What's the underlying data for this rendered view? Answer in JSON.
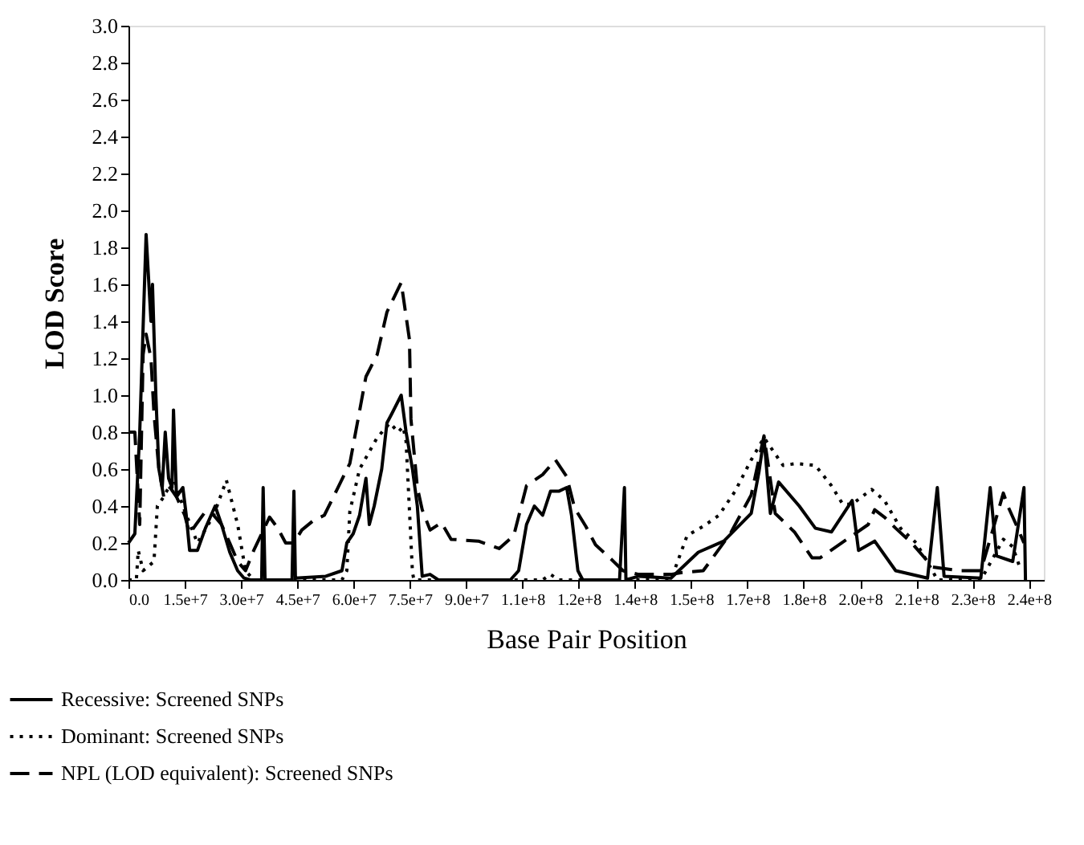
{
  "chart_data": {
    "type": "line",
    "xlabel": "Base Pair Position",
    "ylabel": "LOD Score",
    "xlim": [
      0,
      244000000.0
    ],
    "ylim": [
      0,
      3.0
    ],
    "xticks": [
      {
        "value": 0,
        "label": "0.0"
      },
      {
        "value": 15000000.0,
        "label": "1.5e+7"
      },
      {
        "value": 30000000.0,
        "label": "3.0e+7"
      },
      {
        "value": 45000000.0,
        "label": "4.5e+7"
      },
      {
        "value": 60000000.0,
        "label": "6.0e+7"
      },
      {
        "value": 75000000.0,
        "label": "7.5e+7"
      },
      {
        "value": 90000000.0,
        "label": "9.0e+7"
      },
      {
        "value": 105000000.0,
        "label": "1.1e+8"
      },
      {
        "value": 120000000.0,
        "label": "1.2e+8"
      },
      {
        "value": 135000000.0,
        "label": "1.4e+8"
      },
      {
        "value": 150000000.0,
        "label": "1.5e+8"
      },
      {
        "value": 165000000.0,
        "label": "1.7e+8"
      },
      {
        "value": 180000000.0,
        "label": "1.8e+8"
      },
      {
        "value": 195000000.0,
        "label": "2.0e+8"
      },
      {
        "value": 210000000.0,
        "label": "2.1e+8"
      },
      {
        "value": 225000000.0,
        "label": "2.3e+8"
      },
      {
        "value": 240000000.0,
        "label": "2.4e+8"
      }
    ],
    "yticks": [
      {
        "value": 0,
        "label": "0.0"
      },
      {
        "value": 0.2,
        "label": "0.2"
      },
      {
        "value": 0.4,
        "label": "0.4"
      },
      {
        "value": 0.6,
        "label": "0.6"
      },
      {
        "value": 0.8,
        "label": "0.8"
      },
      {
        "value": 1.0,
        "label": "1.0"
      },
      {
        "value": 1.2,
        "label": "1.2"
      },
      {
        "value": 1.4,
        "label": "1.4"
      },
      {
        "value": 1.6,
        "label": "1.6"
      },
      {
        "value": 1.8,
        "label": "1.8"
      },
      {
        "value": 2.0,
        "label": "2.0"
      },
      {
        "value": 2.2,
        "label": "2.2"
      },
      {
        "value": 2.4,
        "label": "2.4"
      },
      {
        "value": 2.6,
        "label": "2.6"
      },
      {
        "value": 2.8,
        "label": "2.8"
      },
      {
        "value": 3.0,
        "label": "3.0"
      }
    ],
    "grid": false,
    "legend": "bottom left",
    "series": [
      {
        "name": "Recessive: Screened SNPs",
        "color": "#000000",
        "line_style": "solid",
        "x": [
          0,
          1700000.0,
          3000000.0,
          4700000.0,
          6000000.0,
          6400000.0,
          7300000.0,
          8100000.0,
          9000000.0,
          9800000.0,
          10700000.0,
          11600000.0,
          12000000.0,
          12800000.0,
          14500000.0,
          15400000.0,
          16300000.0,
          18400000.0,
          20500000.0,
          23100000.0,
          24800000.0,
          27000000.0,
          29100000.0,
          30800000.0,
          32500000.0,
          35500000.0,
          35900000.0,
          36400000.0,
          43600000.0,
          44100000.0,
          44500000.0,
          52600000.0,
          56900000.0,
          58200000.0,
          59900000.0,
          61600000.0,
          63300000.0,
          64200000.0,
          65500000.0,
          67500000.0,
          68900000.0,
          70200000.0,
          72700000.0,
          74000000.0,
          75700000.0,
          77000000.0,
          78300000.0,
          80400000.0,
          82600000.0,
          101800000.0,
          104000000.0,
          106100000.0,
          108200000.0,
          110400000.0,
          112500000.0,
          114700000.0,
          116800000.0,
          118100000.0,
          119800000.0,
          121100000.0,
          130900000.0,
          132200000.0,
          132600000.0,
          136000000.0,
          144600000.0,
          151900000.0,
          158700000.0,
          166000000.0,
          168100000.0,
          169400000.0,
          171100000.0,
          173300000.0,
          178800000.0,
          183100000.0,
          187400000.0,
          192900000.0,
          194600000.0,
          198900000.0,
          204500000.0,
          213000000.0,
          215600000.0,
          217400000.0,
          227200000.0,
          229700000.0,
          231400000.0,
          235700000.0,
          238700000.0,
          239100000.0
        ],
        "values": [
          0.2,
          0.25,
          0.8,
          1.87,
          1.4,
          1.6,
          1.0,
          0.6,
          0.5,
          0.8,
          0.55,
          0.5,
          0.92,
          0.45,
          0.5,
          0.35,
          0.16,
          0.16,
          0.28,
          0.4,
          0.3,
          0.15,
          0.05,
          0.01,
          0,
          0,
          0.5,
          0,
          0,
          0.48,
          0.01,
          0.02,
          0.05,
          0.2,
          0.25,
          0.35,
          0.55,
          0.3,
          0.4,
          0.6,
          0.85,
          0.9,
          1.0,
          0.8,
          0.6,
          0.4,
          0.02,
          0.03,
          0,
          0,
          0.05,
          0.3,
          0.4,
          0.35,
          0.48,
          0.48,
          0.5,
          0.35,
          0.05,
          0,
          0,
          0.5,
          0,
          0.02,
          0.01,
          0.15,
          0.21,
          0.36,
          0.59,
          0.77,
          0.36,
          0.53,
          0.4,
          0.28,
          0.26,
          0.43,
          0.16,
          0.21,
          0.05,
          0.01,
          0.5,
          0.02,
          0.01,
          0.5,
          0.13,
          0.1,
          0.5,
          0
        ]
      },
      {
        "name": "Dominant: Screened SNPs",
        "color": "#000000",
        "line_style": "dotted",
        "x": [
          0,
          2100000.0,
          2600000.0,
          3900000.0,
          6800000.0,
          7700000.0,
          9400000.0,
          12000000.0,
          14500000.0,
          18400000.0,
          22700000.0,
          26100000.0,
          29100000.0,
          31200000.0,
          33400000.0,
          56900000.0,
          58200000.0,
          59000000.0,
          61600000.0,
          66300000.0,
          69700000.0,
          71900000.0,
          73200000.0,
          74000000.0,
          75700000.0,
          76100000.0,
          110400000.0,
          112500000.0,
          114700000.0,
          144600000.0,
          148900000.0,
          153200000.0,
          157400000.0,
          161700000.0,
          166000000.0,
          169400000.0,
          174500000.0,
          178000000.0,
          183100000.0,
          187400000.0,
          190400000.0,
          192900000.0,
          198100000.0,
          201500000.0,
          205800000.0,
          210000000.0,
          214300000.0,
          215600000.0,
          227200000.0,
          233200000.0,
          235700000.0,
          237900000.0
        ],
        "values": [
          0,
          0,
          0.16,
          0.05,
          0.1,
          0.4,
          0.45,
          0.55,
          0.4,
          0.2,
          0.35,
          0.54,
          0.3,
          0.05,
          0,
          0,
          0.05,
          0.37,
          0.6,
          0.77,
          0.85,
          0.8,
          0.83,
          0.75,
          0.04,
          0,
          0,
          0.03,
          0,
          0,
          0.24,
          0.29,
          0.35,
          0.48,
          0.65,
          0.77,
          0.62,
          0.63,
          0.62,
          0.51,
          0.41,
          0.41,
          0.49,
          0.43,
          0.28,
          0.2,
          0.05,
          0,
          0,
          0.22,
          0.18,
          0.05
        ]
      },
      {
        "name": "NPL (LOD equivalent): Screened SNPs",
        "color": "#000000",
        "line_style": "dashed",
        "x": [
          0,
          1700000.0,
          3000000.0,
          3900000.0,
          4700000.0,
          6000000.0,
          6800000.0,
          8100000.0,
          9400000.0,
          11100000.0,
          12800000.0,
          15000000.0,
          16300000.0,
          18000000.0,
          20500000.0,
          22700000.0,
          24800000.0,
          27000000.0,
          29100000.0,
          31200000.0,
          33400000.0,
          37600000.0,
          39800000.0,
          41900000.0,
          44100000.0,
          46200000.0,
          49200000.0,
          52200000.0,
          55600000.0,
          59000000.0,
          63300000.0,
          66300000.0,
          68900000.0,
          72700000.0,
          74900000.0,
          75300000.0,
          77000000.0,
          78300000.0,
          80400000.0,
          83400000.0,
          86000000.0,
          93300000.0,
          98800000.0,
          102700000.0,
          106100000.0,
          110400000.0,
          113800000.0,
          116800000.0,
          118900000.0,
          121900000.0,
          124500000.0,
          128800000.0,
          131800000.0,
          136000000.0,
          144600000.0,
          147600000.0,
          153200000.0,
          160400000.0,
          166000000.0,
          169400000.0,
          172400000.0,
          177500000.0,
          182200000.0,
          184400000.0,
          197200000.0,
          198900000.0,
          201500000.0,
          204500000.0,
          208800000.0,
          214300000.0,
          221600000.0,
          227200000.0,
          230100000.0,
          233200000.0,
          234400000.0,
          236600000.0,
          238700000.0
        ],
        "values": [
          0.8,
          0.8,
          0.3,
          1.22,
          1.33,
          1.2,
          0.9,
          0.6,
          0.45,
          0.5,
          0.45,
          0.35,
          0.25,
          0.3,
          0.37,
          0.35,
          0.3,
          0.2,
          0.1,
          0.05,
          0.16,
          0.34,
          0.28,
          0.2,
          0.2,
          0.27,
          0.32,
          0.35,
          0.49,
          0.63,
          1.1,
          1.22,
          1.45,
          1.61,
          1.3,
          0.87,
          0.5,
          0.38,
          0.27,
          0.31,
          0.22,
          0.21,
          0.17,
          0.24,
          0.51,
          0.57,
          0.65,
          0.56,
          0.39,
          0.29,
          0.19,
          0.11,
          0.05,
          0.03,
          0.03,
          0.04,
          0.05,
          0.25,
          0.46,
          0.78,
          0.36,
          0.26,
          0.12,
          0.12,
          0.3,
          0.38,
          0.34,
          0.28,
          0.2,
          0.07,
          0.05,
          0.05,
          0.25,
          0.47,
          0.4,
          0.3,
          0.2
        ]
      }
    ]
  }
}
